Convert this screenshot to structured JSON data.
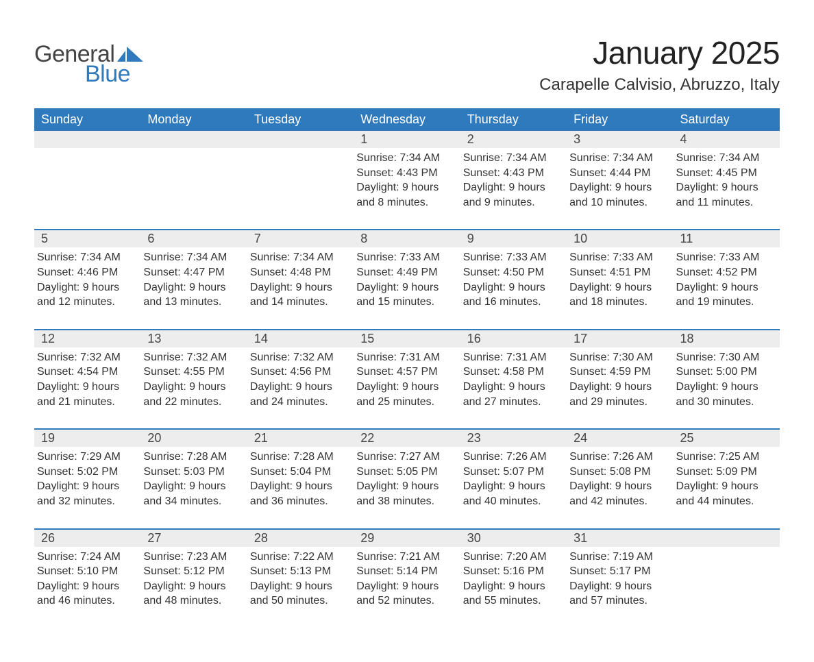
{
  "logo": {
    "text_general": "General",
    "text_blue": "Blue",
    "flag_color": "#2f79bd"
  },
  "title": "January 2025",
  "location": "Carapelle Calvisio, Abruzzo, Italy",
  "colors": {
    "header_bg": "#2f79bd",
    "header_text": "#ffffff",
    "daynum_bg": "#ededed",
    "body_text": "#333333",
    "week_divider": "#2f79bd",
    "page_bg": "#ffffff"
  },
  "day_headers": [
    "Sunday",
    "Monday",
    "Tuesday",
    "Wednesday",
    "Thursday",
    "Friday",
    "Saturday"
  ],
  "weeks": [
    [
      {
        "day": "",
        "sunrise": "",
        "sunset": "",
        "daylight1": "",
        "daylight2": ""
      },
      {
        "day": "",
        "sunrise": "",
        "sunset": "",
        "daylight1": "",
        "daylight2": ""
      },
      {
        "day": "",
        "sunrise": "",
        "sunset": "",
        "daylight1": "",
        "daylight2": ""
      },
      {
        "day": "1",
        "sunrise": "Sunrise: 7:34 AM",
        "sunset": "Sunset: 4:43 PM",
        "daylight1": "Daylight: 9 hours",
        "daylight2": "and 8 minutes."
      },
      {
        "day": "2",
        "sunrise": "Sunrise: 7:34 AM",
        "sunset": "Sunset: 4:43 PM",
        "daylight1": "Daylight: 9 hours",
        "daylight2": "and 9 minutes."
      },
      {
        "day": "3",
        "sunrise": "Sunrise: 7:34 AM",
        "sunset": "Sunset: 4:44 PM",
        "daylight1": "Daylight: 9 hours",
        "daylight2": "and 10 minutes."
      },
      {
        "day": "4",
        "sunrise": "Sunrise: 7:34 AM",
        "sunset": "Sunset: 4:45 PM",
        "daylight1": "Daylight: 9 hours",
        "daylight2": "and 11 minutes."
      }
    ],
    [
      {
        "day": "5",
        "sunrise": "Sunrise: 7:34 AM",
        "sunset": "Sunset: 4:46 PM",
        "daylight1": "Daylight: 9 hours",
        "daylight2": "and 12 minutes."
      },
      {
        "day": "6",
        "sunrise": "Sunrise: 7:34 AM",
        "sunset": "Sunset: 4:47 PM",
        "daylight1": "Daylight: 9 hours",
        "daylight2": "and 13 minutes."
      },
      {
        "day": "7",
        "sunrise": "Sunrise: 7:34 AM",
        "sunset": "Sunset: 4:48 PM",
        "daylight1": "Daylight: 9 hours",
        "daylight2": "and 14 minutes."
      },
      {
        "day": "8",
        "sunrise": "Sunrise: 7:33 AM",
        "sunset": "Sunset: 4:49 PM",
        "daylight1": "Daylight: 9 hours",
        "daylight2": "and 15 minutes."
      },
      {
        "day": "9",
        "sunrise": "Sunrise: 7:33 AM",
        "sunset": "Sunset: 4:50 PM",
        "daylight1": "Daylight: 9 hours",
        "daylight2": "and 16 minutes."
      },
      {
        "day": "10",
        "sunrise": "Sunrise: 7:33 AM",
        "sunset": "Sunset: 4:51 PM",
        "daylight1": "Daylight: 9 hours",
        "daylight2": "and 18 minutes."
      },
      {
        "day": "11",
        "sunrise": "Sunrise: 7:33 AM",
        "sunset": "Sunset: 4:52 PM",
        "daylight1": "Daylight: 9 hours",
        "daylight2": "and 19 minutes."
      }
    ],
    [
      {
        "day": "12",
        "sunrise": "Sunrise: 7:32 AM",
        "sunset": "Sunset: 4:54 PM",
        "daylight1": "Daylight: 9 hours",
        "daylight2": "and 21 minutes."
      },
      {
        "day": "13",
        "sunrise": "Sunrise: 7:32 AM",
        "sunset": "Sunset: 4:55 PM",
        "daylight1": "Daylight: 9 hours",
        "daylight2": "and 22 minutes."
      },
      {
        "day": "14",
        "sunrise": "Sunrise: 7:32 AM",
        "sunset": "Sunset: 4:56 PM",
        "daylight1": "Daylight: 9 hours",
        "daylight2": "and 24 minutes."
      },
      {
        "day": "15",
        "sunrise": "Sunrise: 7:31 AM",
        "sunset": "Sunset: 4:57 PM",
        "daylight1": "Daylight: 9 hours",
        "daylight2": "and 25 minutes."
      },
      {
        "day": "16",
        "sunrise": "Sunrise: 7:31 AM",
        "sunset": "Sunset: 4:58 PM",
        "daylight1": "Daylight: 9 hours",
        "daylight2": "and 27 minutes."
      },
      {
        "day": "17",
        "sunrise": "Sunrise: 7:30 AM",
        "sunset": "Sunset: 4:59 PM",
        "daylight1": "Daylight: 9 hours",
        "daylight2": "and 29 minutes."
      },
      {
        "day": "18",
        "sunrise": "Sunrise: 7:30 AM",
        "sunset": "Sunset: 5:00 PM",
        "daylight1": "Daylight: 9 hours",
        "daylight2": "and 30 minutes."
      }
    ],
    [
      {
        "day": "19",
        "sunrise": "Sunrise: 7:29 AM",
        "sunset": "Sunset: 5:02 PM",
        "daylight1": "Daylight: 9 hours",
        "daylight2": "and 32 minutes."
      },
      {
        "day": "20",
        "sunrise": "Sunrise: 7:28 AM",
        "sunset": "Sunset: 5:03 PM",
        "daylight1": "Daylight: 9 hours",
        "daylight2": "and 34 minutes."
      },
      {
        "day": "21",
        "sunrise": "Sunrise: 7:28 AM",
        "sunset": "Sunset: 5:04 PM",
        "daylight1": "Daylight: 9 hours",
        "daylight2": "and 36 minutes."
      },
      {
        "day": "22",
        "sunrise": "Sunrise: 7:27 AM",
        "sunset": "Sunset: 5:05 PM",
        "daylight1": "Daylight: 9 hours",
        "daylight2": "and 38 minutes."
      },
      {
        "day": "23",
        "sunrise": "Sunrise: 7:26 AM",
        "sunset": "Sunset: 5:07 PM",
        "daylight1": "Daylight: 9 hours",
        "daylight2": "and 40 minutes."
      },
      {
        "day": "24",
        "sunrise": "Sunrise: 7:26 AM",
        "sunset": "Sunset: 5:08 PM",
        "daylight1": "Daylight: 9 hours",
        "daylight2": "and 42 minutes."
      },
      {
        "day": "25",
        "sunrise": "Sunrise: 7:25 AM",
        "sunset": "Sunset: 5:09 PM",
        "daylight1": "Daylight: 9 hours",
        "daylight2": "and 44 minutes."
      }
    ],
    [
      {
        "day": "26",
        "sunrise": "Sunrise: 7:24 AM",
        "sunset": "Sunset: 5:10 PM",
        "daylight1": "Daylight: 9 hours",
        "daylight2": "and 46 minutes."
      },
      {
        "day": "27",
        "sunrise": "Sunrise: 7:23 AM",
        "sunset": "Sunset: 5:12 PM",
        "daylight1": "Daylight: 9 hours",
        "daylight2": "and 48 minutes."
      },
      {
        "day": "28",
        "sunrise": "Sunrise: 7:22 AM",
        "sunset": "Sunset: 5:13 PM",
        "daylight1": "Daylight: 9 hours",
        "daylight2": "and 50 minutes."
      },
      {
        "day": "29",
        "sunrise": "Sunrise: 7:21 AM",
        "sunset": "Sunset: 5:14 PM",
        "daylight1": "Daylight: 9 hours",
        "daylight2": "and 52 minutes."
      },
      {
        "day": "30",
        "sunrise": "Sunrise: 7:20 AM",
        "sunset": "Sunset: 5:16 PM",
        "daylight1": "Daylight: 9 hours",
        "daylight2": "and 55 minutes."
      },
      {
        "day": "31",
        "sunrise": "Sunrise: 7:19 AM",
        "sunset": "Sunset: 5:17 PM",
        "daylight1": "Daylight: 9 hours",
        "daylight2": "and 57 minutes."
      },
      {
        "day": "",
        "sunrise": "",
        "sunset": "",
        "daylight1": "",
        "daylight2": ""
      }
    ]
  ]
}
